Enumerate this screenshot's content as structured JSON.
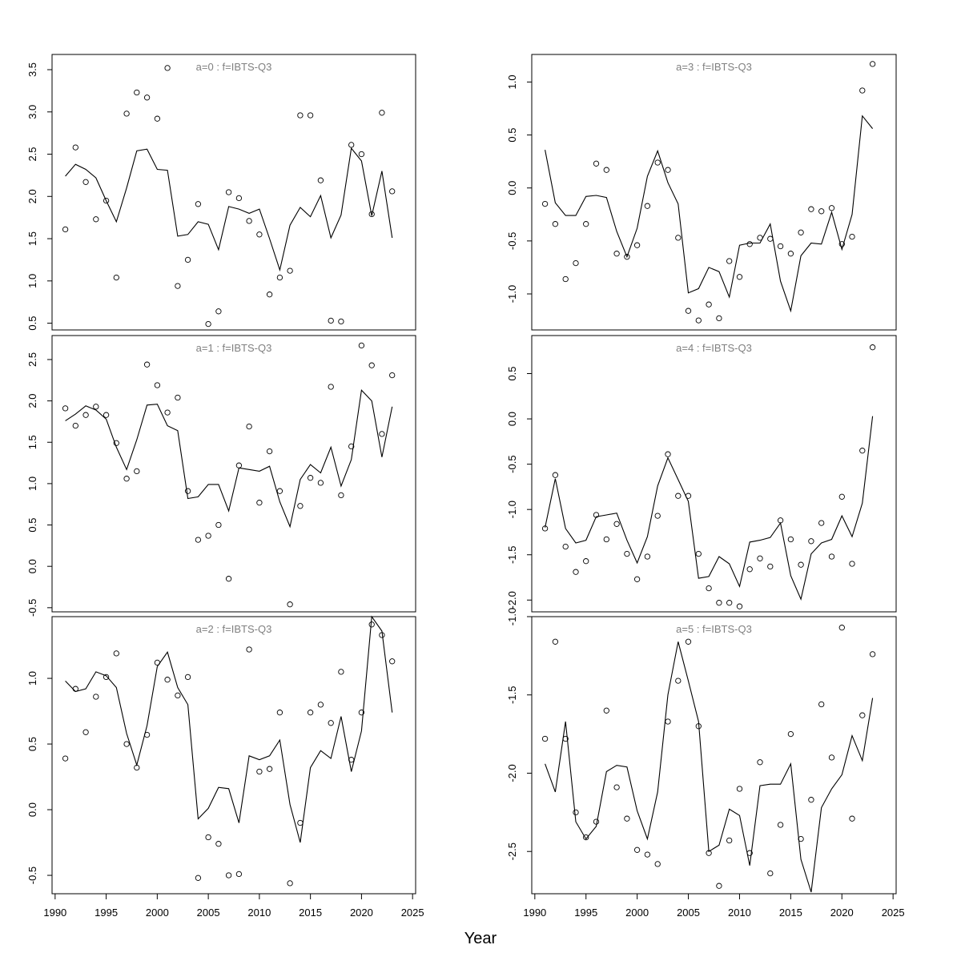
{
  "figure": {
    "xlabel": "Year",
    "line_color": "#000000",
    "panel_title_color": "#808080"
  },
  "chart_data": [
    {
      "type": "line",
      "title": "a=0  :  f=IBTS-Q3",
      "x": [
        1991,
        1992,
        1993,
        1994,
        1995,
        1996,
        1997,
        1998,
        1999,
        2000,
        2001,
        2002,
        2003,
        2004,
        2005,
        2006,
        2007,
        2008,
        2009,
        2010,
        2011,
        2012,
        2013,
        2014,
        2015,
        2016,
        2017,
        2018,
        2019,
        2020,
        2021,
        2022,
        2023
      ],
      "ylim": [
        0.42,
        3.68
      ],
      "yticks": [
        0.5,
        1.0,
        1.5,
        2.0,
        2.5,
        3.0,
        3.5
      ],
      "xlim": [
        1989.7,
        2025.3
      ],
      "xticks": [
        1990,
        1995,
        2000,
        2005,
        2010,
        2015,
        2020,
        2025
      ],
      "observed": [
        1.61,
        2.58,
        2.17,
        1.73,
        1.95,
        1.04,
        2.98,
        3.23,
        3.17,
        2.92,
        3.52,
        0.94,
        1.25,
        1.91,
        0.49,
        0.64,
        2.05,
        1.98,
        1.71,
        1.55,
        0.84,
        1.04,
        1.12,
        2.96,
        2.96,
        2.19,
        0.53,
        0.52,
        2.61,
        2.5,
        1.79,
        2.99,
        2.06
      ],
      "fitted": [
        2.24,
        2.38,
        2.32,
        2.22,
        1.95,
        1.7,
        2.1,
        2.54,
        2.56,
        2.32,
        2.31,
        1.53,
        1.55,
        1.7,
        1.67,
        1.37,
        1.88,
        1.85,
        1.8,
        1.85,
        1.5,
        1.13,
        1.66,
        1.87,
        1.76,
        2.01,
        1.51,
        1.78,
        2.57,
        2.42,
        1.77,
        2.3,
        1.51
      ]
    },
    {
      "type": "line",
      "title": "a=1  :  f=IBTS-Q3",
      "x": [
        1991,
        1992,
        1993,
        1994,
        1995,
        1996,
        1997,
        1998,
        1999,
        2000,
        2001,
        2002,
        2003,
        2004,
        2005,
        2006,
        2007,
        2008,
        2009,
        2010,
        2011,
        2012,
        2013,
        2014,
        2015,
        2016,
        2017,
        2018,
        2019,
        2020,
        2021,
        2022,
        2023
      ],
      "ylim": [
        -0.55,
        2.79
      ],
      "yticks": [
        -0.5,
        0.0,
        0.5,
        1.0,
        1.5,
        2.0,
        2.5
      ],
      "xlim": [
        1989.7,
        2025.3
      ],
      "xticks": [
        1990,
        1995,
        2000,
        2005,
        2010,
        2015,
        2020,
        2025
      ],
      "observed": [
        1.91,
        1.7,
        1.83,
        1.93,
        1.83,
        1.49,
        1.06,
        1.15,
        2.44,
        2.19,
        1.86,
        2.04,
        0.91,
        0.32,
        0.37,
        0.5,
        -0.15,
        1.22,
        1.69,
        0.77,
        1.39,
        0.91,
        -0.46,
        0.73,
        1.07,
        1.01,
        2.17,
        0.86,
        1.45,
        2.67,
        2.43,
        1.6,
        2.31
      ],
      "fitted": [
        1.76,
        1.84,
        1.94,
        1.89,
        1.78,
        1.44,
        1.17,
        1.53,
        1.95,
        1.96,
        1.7,
        1.64,
        0.82,
        0.84,
        0.99,
        0.99,
        0.67,
        1.19,
        1.17,
        1.15,
        1.21,
        0.78,
        0.48,
        1.05,
        1.23,
        1.13,
        1.44,
        0.97,
        1.29,
        2.13,
        2.0,
        1.32,
        1.93
      ]
    },
    {
      "type": "line",
      "title": "a=2  :  f=IBTS-Q3",
      "x": [
        1991,
        1992,
        1993,
        1994,
        1995,
        1996,
        1997,
        1998,
        1999,
        2000,
        2001,
        2002,
        2003,
        2004,
        2005,
        2006,
        2007,
        2008,
        2009,
        2010,
        2011,
        2012,
        2013,
        2014,
        2015,
        2016,
        2017,
        2018,
        2019,
        2020,
        2021,
        2022,
        2023
      ],
      "ylim": [
        -0.64,
        1.47
      ],
      "yticks": [
        -0.5,
        0.0,
        0.5,
        1.0
      ],
      "xlim": [
        1989.7,
        2025.3
      ],
      "xticks": [
        1990,
        1995,
        2000,
        2005,
        2010,
        2015,
        2020,
        2025
      ],
      "observed": [
        0.39,
        0.92,
        0.59,
        0.86,
        1.01,
        1.19,
        0.5,
        0.32,
        0.57,
        1.12,
        0.99,
        0.87,
        1.01,
        -0.52,
        -0.21,
        -0.26,
        -0.5,
        -0.49,
        1.22,
        0.29,
        0.31,
        0.74,
        -0.56,
        -0.1,
        0.74,
        0.8,
        0.66,
        1.05,
        0.38,
        0.74,
        1.41,
        1.33,
        1.13
      ],
      "fitted": [
        0.98,
        0.9,
        0.92,
        1.05,
        1.02,
        0.93,
        0.58,
        0.34,
        0.64,
        1.09,
        1.2,
        0.93,
        0.8,
        -0.07,
        0.01,
        0.17,
        0.16,
        -0.1,
        0.41,
        0.38,
        0.41,
        0.53,
        0.04,
        -0.25,
        0.32,
        0.45,
        0.39,
        0.71,
        0.29,
        0.6,
        1.47,
        1.36,
        0.74
      ]
    },
    {
      "type": "line",
      "title": "a=3  :  f=IBTS-Q3",
      "x": [
        1991,
        1992,
        1993,
        1994,
        1995,
        1996,
        1997,
        1998,
        1999,
        2000,
        2001,
        2002,
        2003,
        2004,
        2005,
        2006,
        2007,
        2008,
        2009,
        2010,
        2011,
        2012,
        2013,
        2014,
        2015,
        2016,
        2017,
        2018,
        2019,
        2020,
        2021,
        2022,
        2023
      ],
      "ylim": [
        -1.34,
        1.26
      ],
      "yticks": [
        -1.0,
        -0.5,
        0.0,
        0.5,
        1.0
      ],
      "xlim": [
        1989.7,
        2025.3
      ],
      "xticks": [
        1990,
        1995,
        2000,
        2005,
        2010,
        2015,
        2020,
        2025
      ],
      "observed": [
        -0.15,
        -0.34,
        -0.86,
        -0.71,
        -0.34,
        0.23,
        0.17,
        -0.62,
        -0.65,
        -0.54,
        -0.17,
        0.24,
        0.17,
        -0.47,
        -1.16,
        -1.25,
        -1.1,
        -1.23,
        -0.69,
        -0.84,
        -0.53,
        -0.47,
        -0.48,
        -0.55,
        -0.62,
        -0.42,
        -0.2,
        -0.22,
        -0.19,
        -0.53,
        -0.46,
        0.92,
        1.17
      ],
      "fitted": [
        0.36,
        -0.14,
        -0.26,
        -0.26,
        -0.08,
        -0.07,
        -0.09,
        -0.41,
        -0.65,
        -0.38,
        0.11,
        0.35,
        0.05,
        -0.15,
        -0.99,
        -0.95,
        -0.75,
        -0.79,
        -1.03,
        -0.54,
        -0.52,
        -0.52,
        -0.34,
        -0.88,
        -1.16,
        -0.64,
        -0.52,
        -0.53,
        -0.23,
        -0.58,
        -0.25,
        0.68,
        0.56
      ]
    },
    {
      "type": "line",
      "title": "a=4  :  f=IBTS-Q3",
      "x": [
        1991,
        1992,
        1993,
        1994,
        1995,
        1996,
        1997,
        1998,
        1999,
        2000,
        2001,
        2002,
        2003,
        2004,
        2005,
        2006,
        2007,
        2008,
        2009,
        2010,
        2011,
        2012,
        2013,
        2014,
        2015,
        2016,
        2017,
        2018,
        2019,
        2020,
        2021,
        2022,
        2023
      ],
      "ylim": [
        -2.13,
        0.92
      ],
      "yticks": [
        -2.0,
        -1.5,
        -1.0,
        -0.5,
        0.0,
        0.5
      ],
      "xlim": [
        1989.7,
        2025.3
      ],
      "xticks": [
        1990,
        1995,
        2000,
        2005,
        2010,
        2015,
        2020,
        2025
      ],
      "observed": [
        -1.21,
        -0.62,
        -1.41,
        -1.69,
        -1.57,
        -1.06,
        -1.33,
        -1.16,
        -1.49,
        -1.77,
        -1.52,
        -1.07,
        -0.39,
        -0.85,
        -0.85,
        -1.49,
        -1.87,
        -2.03,
        -2.03,
        -2.07,
        -1.66,
        -1.54,
        -1.63,
        -1.12,
        -1.33,
        -1.61,
        -1.35,
        -1.15,
        -1.52,
        -0.86,
        -1.6,
        -0.35,
        0.79
      ],
      "fitted": [
        -1.2,
        -0.66,
        -1.21,
        -1.37,
        -1.34,
        -1.08,
        -1.06,
        -1.04,
        -1.34,
        -1.59,
        -1.3,
        -0.74,
        -0.43,
        -0.67,
        -0.91,
        -1.76,
        -1.74,
        -1.52,
        -1.6,
        -1.85,
        -1.36,
        -1.34,
        -1.31,
        -1.15,
        -1.73,
        -1.99,
        -1.49,
        -1.37,
        -1.33,
        -1.07,
        -1.3,
        -0.93,
        0.03
      ]
    },
    {
      "type": "line",
      "title": "a=5  :  f=IBTS-Q3",
      "x": [
        1991,
        1992,
        1993,
        1994,
        1995,
        1996,
        1997,
        1998,
        1999,
        2000,
        2001,
        2002,
        2003,
        2004,
        2005,
        2006,
        2007,
        2008,
        2009,
        2010,
        2011,
        2012,
        2013,
        2014,
        2015,
        2016,
        2017,
        2018,
        2019,
        2020,
        2021,
        2022,
        2023
      ],
      "ylim": [
        -2.77,
        -1.0
      ],
      "yticks": [
        -2.5,
        -2.0,
        -1.5,
        -1.0
      ],
      "xlim": [
        1989.7,
        2025.3
      ],
      "xticks": [
        1990,
        1995,
        2000,
        2005,
        2010,
        2015,
        2020,
        2025
      ],
      "observed": [
        -1.78,
        -1.16,
        -1.78,
        -2.25,
        -2.41,
        -2.31,
        -1.6,
        -2.09,
        -2.29,
        -2.49,
        -2.52,
        -2.58,
        -1.67,
        -1.41,
        -1.16,
        -1.7,
        -2.51,
        -2.72,
        -2.43,
        -2.1,
        -2.51,
        -1.93,
        -2.64,
        -2.33,
        -1.75,
        -2.42,
        -2.17,
        -1.56,
        -1.9,
        -1.07,
        -2.29,
        -1.63,
        -1.24
      ],
      "fitted": [
        -1.94,
        -2.12,
        -1.67,
        -2.31,
        -2.42,
        -2.34,
        -1.99,
        -1.95,
        -1.96,
        -2.24,
        -2.42,
        -2.12,
        -1.5,
        -1.16,
        -1.41,
        -1.67,
        -2.5,
        -2.46,
        -2.23,
        -2.27,
        -2.59,
        -2.08,
        -2.07,
        -2.07,
        -1.94,
        -2.55,
        -2.76,
        -2.22,
        -2.1,
        -2.01,
        -1.76,
        -1.92,
        -1.52
      ]
    }
  ]
}
